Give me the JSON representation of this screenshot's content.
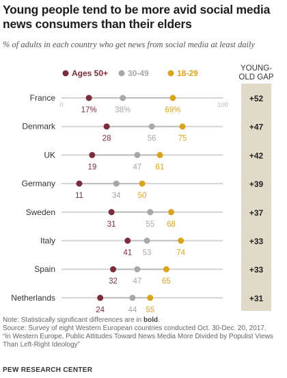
{
  "title": "Young people tend to be more avid social media news consumers than their elders",
  "subtitle": "% of adults in each country who get news from social media  at least daily",
  "gap_header": "YOUNG-OLD GAP",
  "note": {
    "prefix": "Note: Statistically significant differences are in ",
    "bold": "bold",
    "suffix": ".",
    "source": "Source: Survey of eight Western European countries conducted Oct. 30-Dec. 20, 2017.",
    "citation": "“In Western Europe, Public Attitudes Toward News Media More Divided by Populist Views Than Left-Right Ideology”"
  },
  "brand": "PEW RESEARCH CENTER",
  "chart_data": {
    "type": "scatter",
    "subtype": "dot-plot",
    "title": "Young people tend to be more avid social media news consumers than their elders",
    "subtitle": "% of adults in each country who get news from social media  at least daily",
    "xlim": [
      0,
      100
    ],
    "axis_tick_labels": [
      "0",
      "100"
    ],
    "legend_placement": "top",
    "categories": [
      "France",
      "Denmark",
      "UK",
      "Germany",
      "Sweden",
      "Italy",
      "Spain",
      "Netherlands"
    ],
    "series": [
      {
        "name": "Ages 50+",
        "color": "#7b2d3b",
        "values": [
          17,
          28,
          19,
          11,
          31,
          41,
          32,
          24
        ]
      },
      {
        "name": "30-49",
        "color": "#a8a8a8",
        "values": [
          38,
          56,
          47,
          34,
          55,
          53,
          47,
          44
        ]
      },
      {
        "name": "18-29",
        "color": "#d9a520",
        "values": [
          69,
          75,
          61,
          50,
          68,
          74,
          65,
          55
        ]
      }
    ],
    "gap_values": [
      "+52",
      "+47",
      "+42",
      "+39",
      "+37",
      "+33",
      "+33",
      "+31"
    ],
    "gap_color": "#dfdbc8"
  }
}
